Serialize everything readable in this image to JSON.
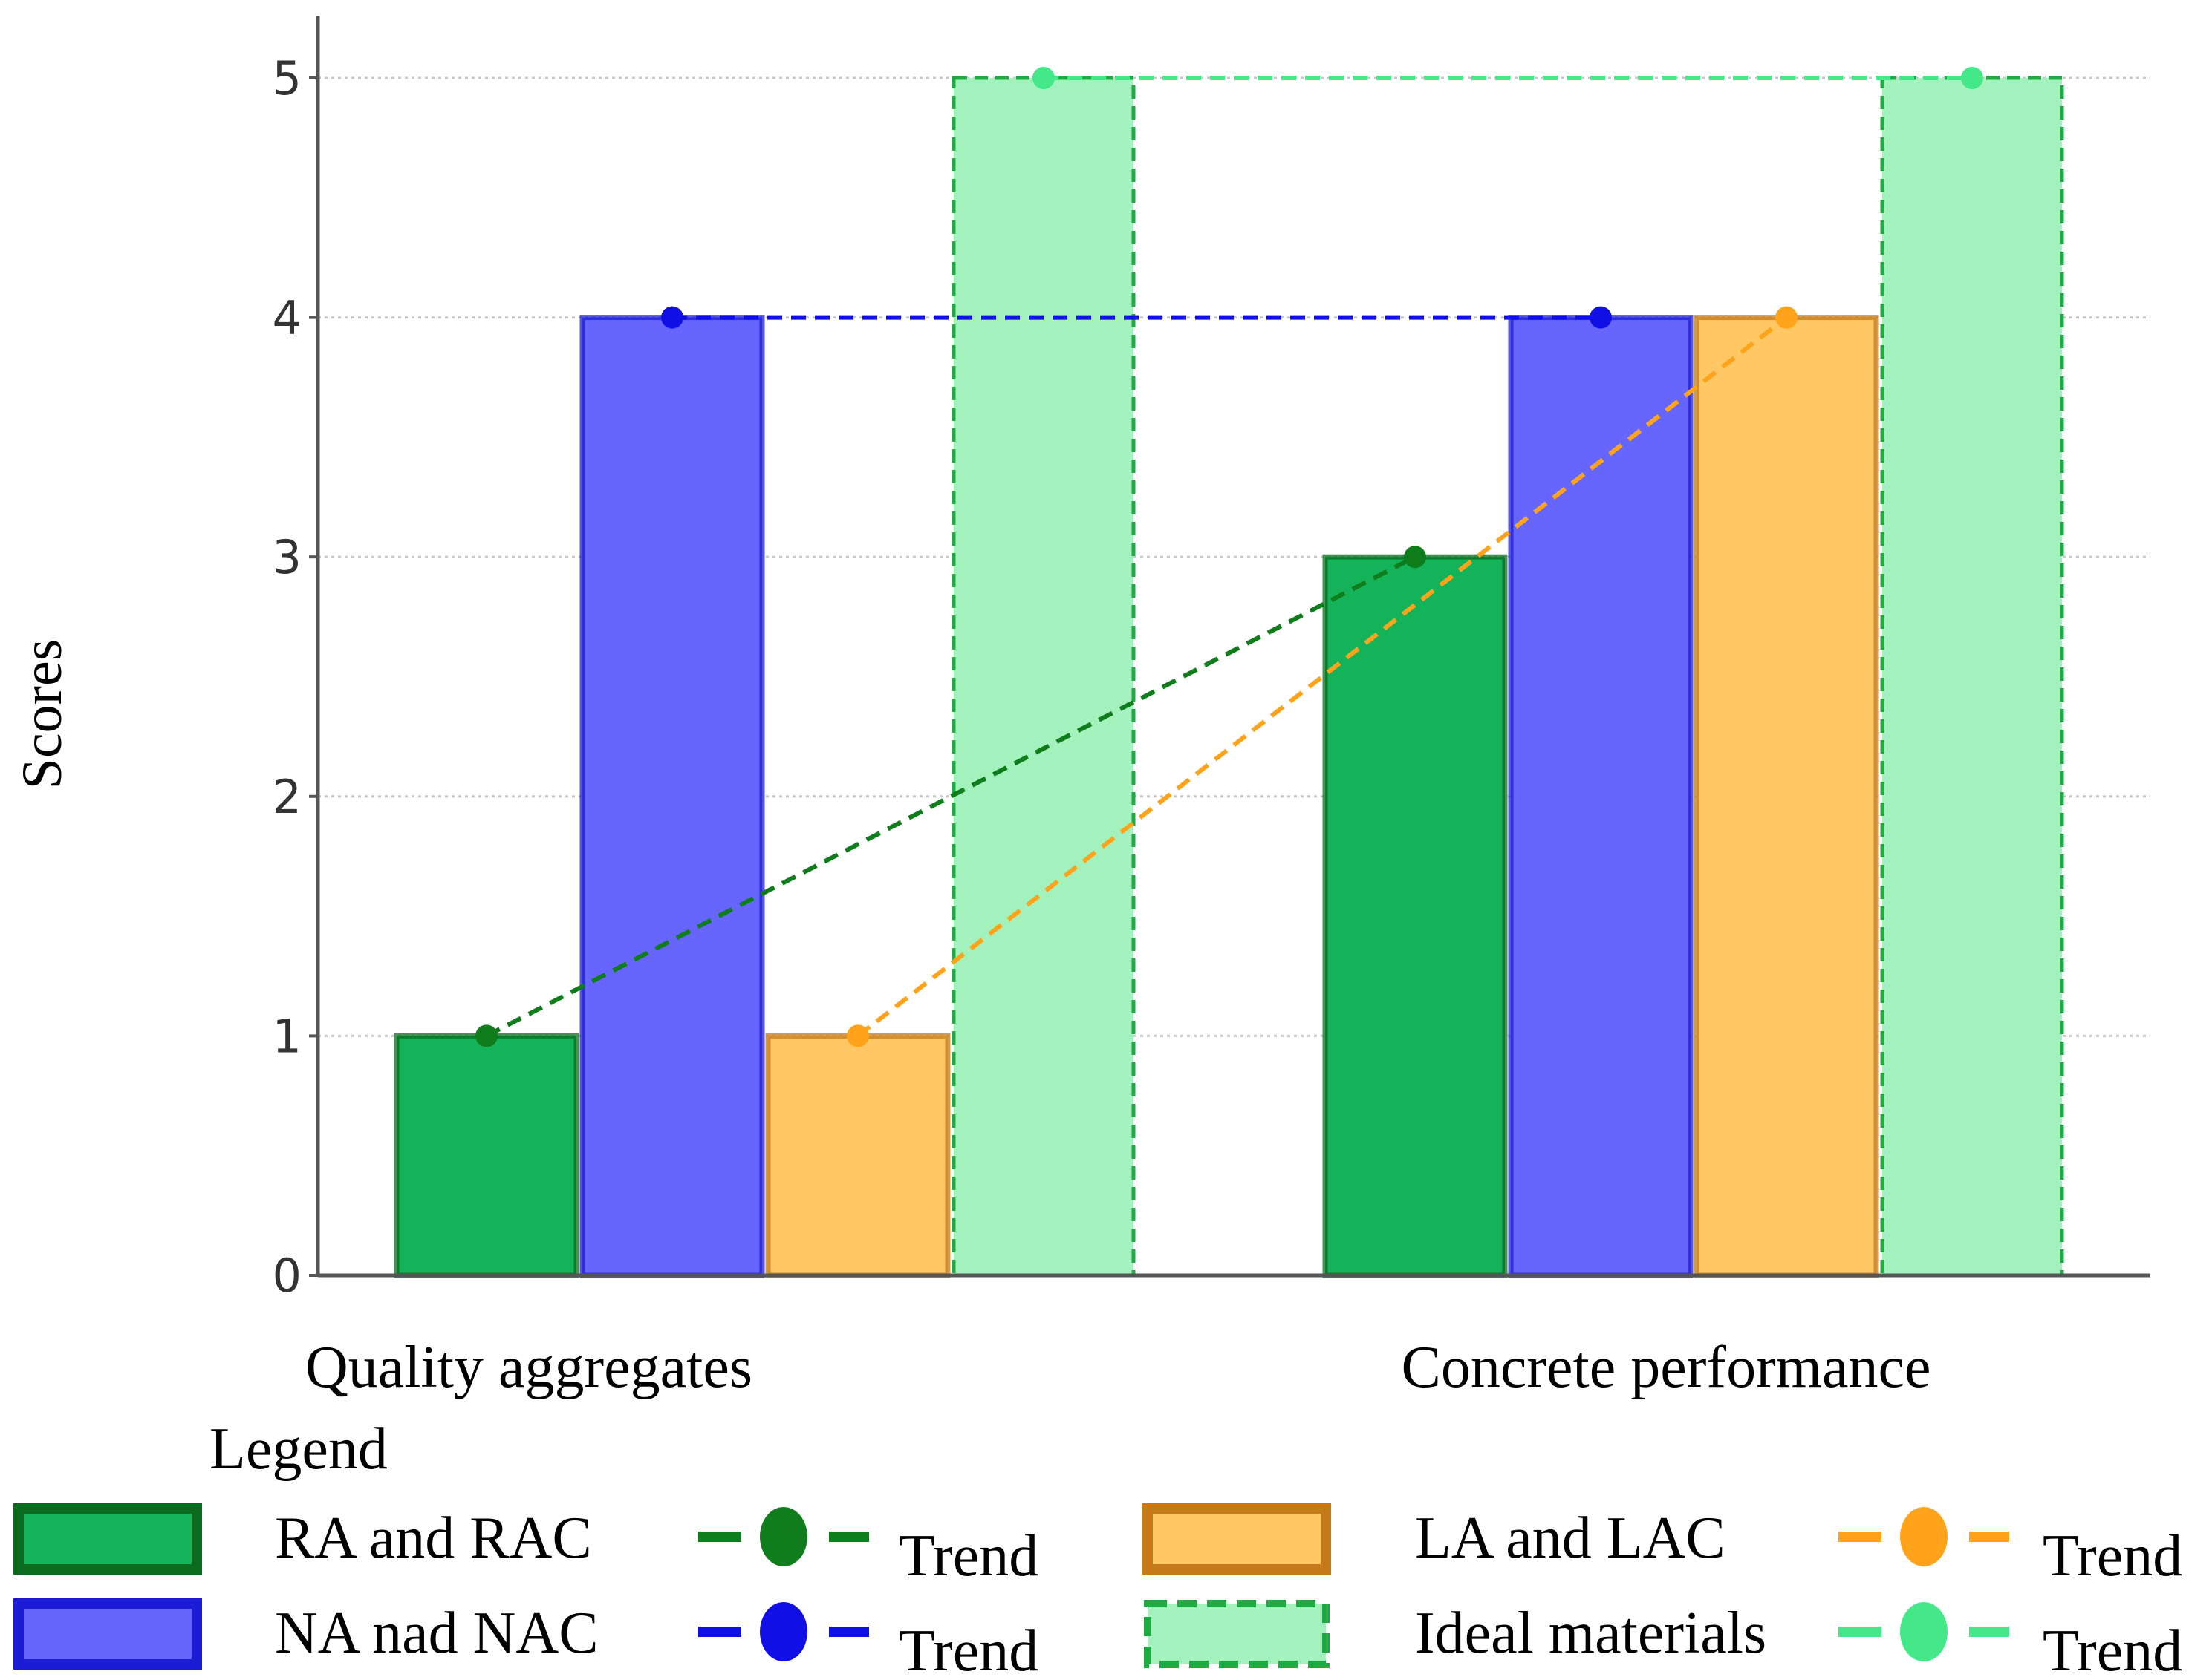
{
  "chart_data": {
    "type": "bar",
    "title": "",
    "xlabel": "",
    "ylabel": "Scores",
    "ylim": [
      0,
      5
    ],
    "yticks": [
      0,
      1,
      2,
      3,
      4,
      5
    ],
    "grid": true,
    "categories": [
      "Quality aggregates",
      "Concrete performance"
    ],
    "series": [
      {
        "name": "RA and RAC",
        "values": [
          1,
          3
        ],
        "fill": "#14b35a",
        "edge": "#0a6b1e",
        "trend_color": "#0f7d1c",
        "trend_label": "Trend",
        "dashed_edge": false
      },
      {
        "name": "NA nad NAC",
        "values": [
          4,
          4
        ],
        "fill": "#6666ff",
        "edge": "#1c1cd4",
        "trend_color": "#1010e6",
        "trend_label": "Trend",
        "dashed_edge": false
      },
      {
        "name": "LA and LAC",
        "values": [
          1,
          4
        ],
        "fill": "#ffc864",
        "edge": "#c47a18",
        "trend_color": "#ffa41a",
        "trend_label": "Trend",
        "dashed_edge": false
      },
      {
        "name": "Ideal materials",
        "values": [
          5,
          5
        ],
        "fill": "#a3f2bd",
        "edge": "#1faa44",
        "trend_color": "#44e888",
        "trend_label": "Trend",
        "dashed_edge": true
      }
    ],
    "legend": {
      "title": "Legend",
      "position": "bottom"
    }
  }
}
